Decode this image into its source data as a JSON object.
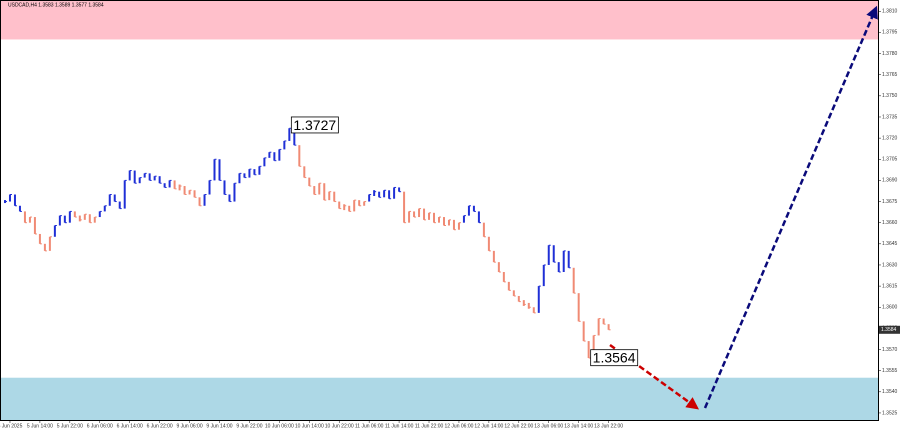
{
  "chart_data": {
    "type": "price-bars",
    "title": "USDCAD,H4 1.3583 1.3589 1.3577 1.3584",
    "xlim": [
      -1,
      175
    ],
    "xticks": [
      {
        "value": 1,
        "label": "5 Jun 2025"
      },
      {
        "value": 7,
        "label": "5 Jun 14:00"
      },
      {
        "value": 13,
        "label": "5 Jun 22:00"
      },
      {
        "value": 19,
        "label": "6 Jun 06:00"
      },
      {
        "value": 25,
        "label": "6 Jun 14:00"
      },
      {
        "value": 31,
        "label": "6 Jun 22:00"
      },
      {
        "value": 37,
        "label": "9 Jun 06:00"
      },
      {
        "value": 43,
        "label": "9 Jun 14:00"
      },
      {
        "value": 49,
        "label": "9 Jun 22:00"
      },
      {
        "value": 55,
        "label": "10 Jun 06:00"
      },
      {
        "value": 61,
        "label": "10 Jun 14:00"
      },
      {
        "value": 67,
        "label": "10 Jun 22:00"
      },
      {
        "value": 73,
        "label": "11 Jun 06:00"
      },
      {
        "value": 79,
        "label": "11 Jun 14:00"
      },
      {
        "value": 85,
        "label": "11 Jun 22:00"
      },
      {
        "value": 91,
        "label": "12 Jun 06:00"
      },
      {
        "value": 97,
        "label": "12 Jun 14:00"
      },
      {
        "value": 103,
        "label": "12 Jun 22:00"
      },
      {
        "value": 109,
        "label": "13 Jun 06:00"
      },
      {
        "value": 115,
        "label": "13 Jun 14:00"
      },
      {
        "value": 121,
        "label": "13 Jun 22:00"
      }
    ],
    "ylim": [
      1.352,
      1.3818
    ],
    "yticks": [
      1.3525,
      {
        "value": 1.354,
        "label": "1.3540"
      },
      1.3555,
      {
        "value": 1.357,
        "label": "1.3570"
      },
      1.3585,
      {
        "value": 1.36,
        "label": "1.3600"
      },
      1.3615,
      {
        "value": 1.363,
        "label": "1.3630"
      },
      1.3645,
      {
        "value": 1.366,
        "label": "1.3660"
      },
      1.3675,
      {
        "value": 1.369,
        "label": "1.3690"
      },
      1.3705,
      {
        "value": 1.372,
        "label": "1.3720"
      },
      1.3735,
      {
        "value": 1.375,
        "label": "1.3750"
      },
      1.3765,
      {
        "value": 1.378,
        "label": "1.3780"
      },
      1.3795,
      {
        "value": 1.381,
        "label": "1.3810"
      }
    ],
    "zones": [
      {
        "range": [
          1.379,
          1.3818
        ],
        "color": "#ffc0cb"
      },
      {
        "range": [
          1.352,
          1.355
        ],
        "color": "#add8e6"
      }
    ],
    "series": [
      {
        "color": "#1f2fd6",
        "values": [
          1.3675,
          1.368,
          1.3672,
          1.3668,
          null,
          null,
          null,
          null,
          null,
          null,
          1.3658,
          1.3665,
          1.366,
          1.3668,
          null,
          null,
          null,
          null,
          null,
          1.3668,
          1.3672,
          1.368,
          1.3675,
          1.367,
          1.369,
          1.3697,
          1.3688,
          1.3692,
          1.3695,
          1.369,
          1.3693,
          1.3688,
          1.3685,
          1.369,
          null,
          null,
          null,
          null,
          null,
          null,
          1.368,
          1.369,
          1.3705,
          1.369,
          1.368,
          1.3675,
          1.3688,
          1.3695,
          1.3692,
          1.3698,
          1.3694,
          1.37,
          1.3706,
          1.371,
          1.3704,
          1.3712,
          1.3718,
          1.3727,
          1.3715,
          null,
          null,
          null,
          null,
          null,
          null,
          null,
          null,
          null,
          null,
          null,
          null,
          null,
          null,
          1.368,
          1.3682,
          1.3678,
          1.3683,
          1.3677,
          1.3685,
          1.3682,
          null,
          null,
          null,
          null,
          null,
          null,
          null,
          null,
          null,
          null,
          null,
          null,
          1.3665,
          1.3672,
          1.3668,
          1.366,
          null,
          null,
          null,
          null,
          null,
          null,
          null,
          null,
          null,
          null,
          null,
          1.3615,
          1.363,
          1.3644,
          1.3632,
          1.3625,
          1.364,
          1.3628,
          null,
          null,
          null,
          null,
          null,
          null,
          null,
          null
        ]
      },
      {
        "color": "#f08a74",
        "values": [
          null,
          null,
          null,
          null,
          1.366,
          1.3664,
          1.3652,
          1.3645,
          1.364,
          1.365,
          null,
          null,
          null,
          null,
          1.3664,
          1.3662,
          1.3666,
          1.366,
          1.3664,
          null,
          null,
          null,
          null,
          null,
          null,
          null,
          null,
          null,
          null,
          null,
          null,
          null,
          null,
          null,
          1.3684,
          1.3686,
          1.368,
          1.3683,
          1.3678,
          1.3672,
          null,
          null,
          null,
          null,
          null,
          null,
          null,
          null,
          null,
          null,
          null,
          null,
          null,
          null,
          null,
          null,
          null,
          null,
          null,
          1.37,
          1.3692,
          1.3686,
          1.368,
          1.3688,
          1.3676,
          1.3682,
          1.3675,
          1.367,
          1.3672,
          1.3668,
          1.3676,
          1.3672,
          1.3675,
          null,
          null,
          null,
          null,
          null,
          null,
          null,
          1.366,
          1.3668,
          1.3664,
          1.367,
          1.3662,
          1.3667,
          1.366,
          1.3664,
          1.3658,
          1.3662,
          1.3655,
          1.366,
          null,
          null,
          null,
          null,
          1.365,
          1.364,
          1.3632,
          1.3625,
          1.3618,
          1.3612,
          1.3608,
          1.3604,
          1.3602,
          1.36,
          1.3596,
          null,
          null,
          null,
          null,
          null,
          null,
          null,
          1.361,
          1.359,
          1.3576,
          1.3564,
          1.358,
          1.3592,
          1.3588,
          1.3584
        ]
      }
    ],
    "annotations": [
      1.3727,
      1.3564
    ],
    "current_price": 1.3584
  }
}
